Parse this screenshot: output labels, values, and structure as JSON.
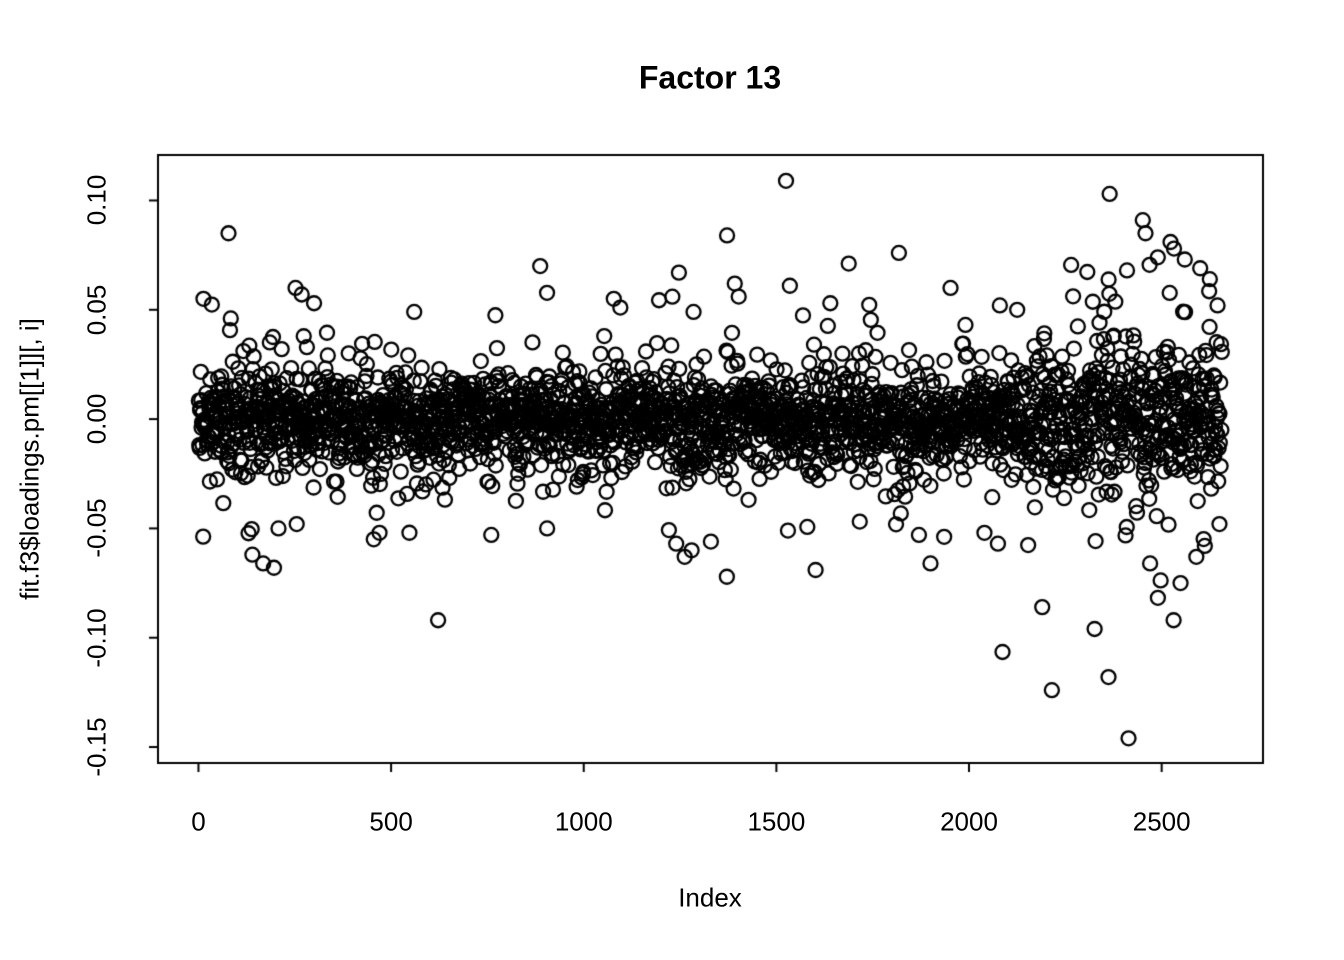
{
  "figure": {
    "background_color": "#ffffff",
    "foreground_color": "#000000"
  },
  "chart_data": {
    "type": "scatter",
    "title": "Factor 13",
    "xlabel": "Index",
    "ylabel": "fit.f3$loadings.pm[[1]][, i]",
    "x_ticks": [
      0,
      500,
      1000,
      1500,
      2000,
      2500
    ],
    "x_tick_labels": [
      "0",
      "500",
      "1000",
      "1500",
      "2000",
      "2500"
    ],
    "y_ticks": [
      -0.15,
      -0.1,
      -0.05,
      0.0,
      0.05,
      0.1
    ],
    "y_tick_labels": [
      "-0.15",
      "-0.10",
      "-0.05",
      "0.00",
      "0.05",
      "0.10"
    ],
    "xlim": [
      -105,
      2763
    ],
    "ylim": [
      -0.1573,
      0.1208
    ],
    "n_points": 2656,
    "max_index": 2656,
    "legend": "none",
    "grid": false,
    "marker": {
      "shape": "open-circle",
      "radius_px": 7,
      "stroke_px": 2.3,
      "color": "#000000"
    },
    "cloud_generator": {
      "seed": 1337,
      "mean": 0,
      "sd_levels": [
        0.01,
        0.018,
        0.028
      ],
      "sd_weights": [
        0.7,
        0.22,
        0.08
      ],
      "right_tail_start_index": 2150,
      "right_tail_scale": 1.5,
      "left_head_end_index": 120,
      "left_head_scale": 1.25
    },
    "outliers": [
      [
        13,
        0.055
      ],
      [
        78,
        0.085
      ],
      [
        252,
        0.06
      ],
      [
        268,
        0.057
      ],
      [
        300,
        0.053
      ],
      [
        560,
        0.049
      ],
      [
        887,
        0.07
      ],
      [
        1078,
        0.055
      ],
      [
        1095,
        0.051
      ],
      [
        1230,
        0.056
      ],
      [
        1247,
        0.067
      ],
      [
        1285,
        0.049
      ],
      [
        1372,
        0.084
      ],
      [
        1392,
        0.062
      ],
      [
        1525,
        0.109
      ],
      [
        1535,
        0.061
      ],
      [
        1640,
        0.053
      ],
      [
        1818,
        0.076
      ],
      [
        1952,
        0.06
      ],
      [
        2080,
        0.052
      ],
      [
        2125,
        0.05
      ],
      [
        2365,
        0.103
      ],
      [
        2410,
        0.068
      ],
      [
        2451,
        0.091
      ],
      [
        2458,
        0.085
      ],
      [
        2490,
        0.074
      ],
      [
        2523,
        0.081
      ],
      [
        2532,
        0.078
      ],
      [
        2560,
        0.073
      ],
      [
        2600,
        0.069
      ],
      [
        2625,
        0.064
      ],
      [
        2645,
        0.052
      ],
      [
        140,
        -0.062
      ],
      [
        168,
        -0.066
      ],
      [
        196,
        -0.068
      ],
      [
        255,
        -0.048
      ],
      [
        455,
        -0.055
      ],
      [
        470,
        -0.052
      ],
      [
        622,
        -0.092
      ],
      [
        760,
        -0.053
      ],
      [
        905,
        -0.05
      ],
      [
        1240,
        -0.057
      ],
      [
        1262,
        -0.063
      ],
      [
        1280,
        -0.06
      ],
      [
        1330,
        -0.056
      ],
      [
        1530,
        -0.051
      ],
      [
        1870,
        -0.053
      ],
      [
        1900,
        -0.066
      ],
      [
        2040,
        -0.052
      ],
      [
        2075,
        -0.057
      ],
      [
        2190,
        -0.086
      ],
      [
        2215,
        -0.124
      ],
      [
        2326,
        -0.096
      ],
      [
        2362,
        -0.118
      ],
      [
        2414,
        -0.146
      ],
      [
        2470,
        -0.066
      ],
      [
        2531,
        -0.092
      ],
      [
        2549,
        -0.075
      ],
      [
        2590,
        -0.063
      ],
      [
        2612,
        -0.058
      ],
      [
        2650,
        -0.048
      ]
    ]
  }
}
